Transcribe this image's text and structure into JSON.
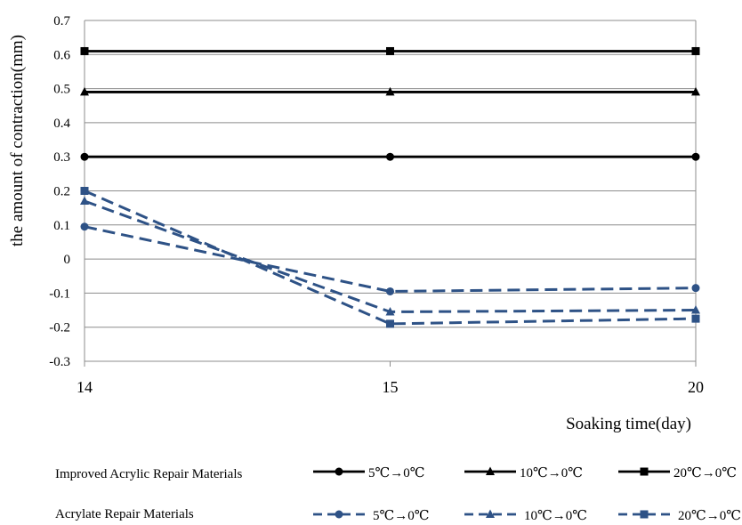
{
  "chart_data": {
    "type": "line",
    "x": [
      "14",
      "15",
      "20"
    ],
    "ylabel": "the amount of contraction(mm)",
    "xlabel": "Soaking time(day)",
    "ylim": [
      -0.3,
      0.7
    ],
    "yticks": [
      "0.7",
      "0.6",
      "0.5",
      "0.4",
      "0.3",
      "0.2",
      "0.1",
      "0",
      "-0.1",
      "-0.2",
      "-0.3"
    ],
    "grid": "horizontal",
    "legend_position": "bottom",
    "groups": [
      {
        "label": "Improved Acrylic Repair Materials",
        "color": "#000000",
        "dash": "solid",
        "series": [
          {
            "name": "5℃→0℃",
            "marker": "circle",
            "values": [
              0.3,
              0.3,
              0.3
            ]
          },
          {
            "name": "10℃→0℃",
            "marker": "triangle",
            "values": [
              0.49,
              0.49,
              0.49
            ]
          },
          {
            "name": "20℃→0℃",
            "marker": "square",
            "values": [
              0.61,
              0.61,
              0.61
            ]
          }
        ]
      },
      {
        "label": "Acrylate Repair Materials",
        "color": "#2E5286",
        "dash": "dashed",
        "series": [
          {
            "name": "5℃→0℃",
            "marker": "circle",
            "values": [
              0.095,
              -0.095,
              -0.085
            ]
          },
          {
            "name": "10℃→0℃",
            "marker": "triangle",
            "values": [
              0.17,
              -0.155,
              -0.15
            ]
          },
          {
            "name": "20℃→0℃",
            "marker": "square",
            "values": [
              0.2,
              -0.19,
              -0.175
            ]
          }
        ]
      }
    ]
  }
}
